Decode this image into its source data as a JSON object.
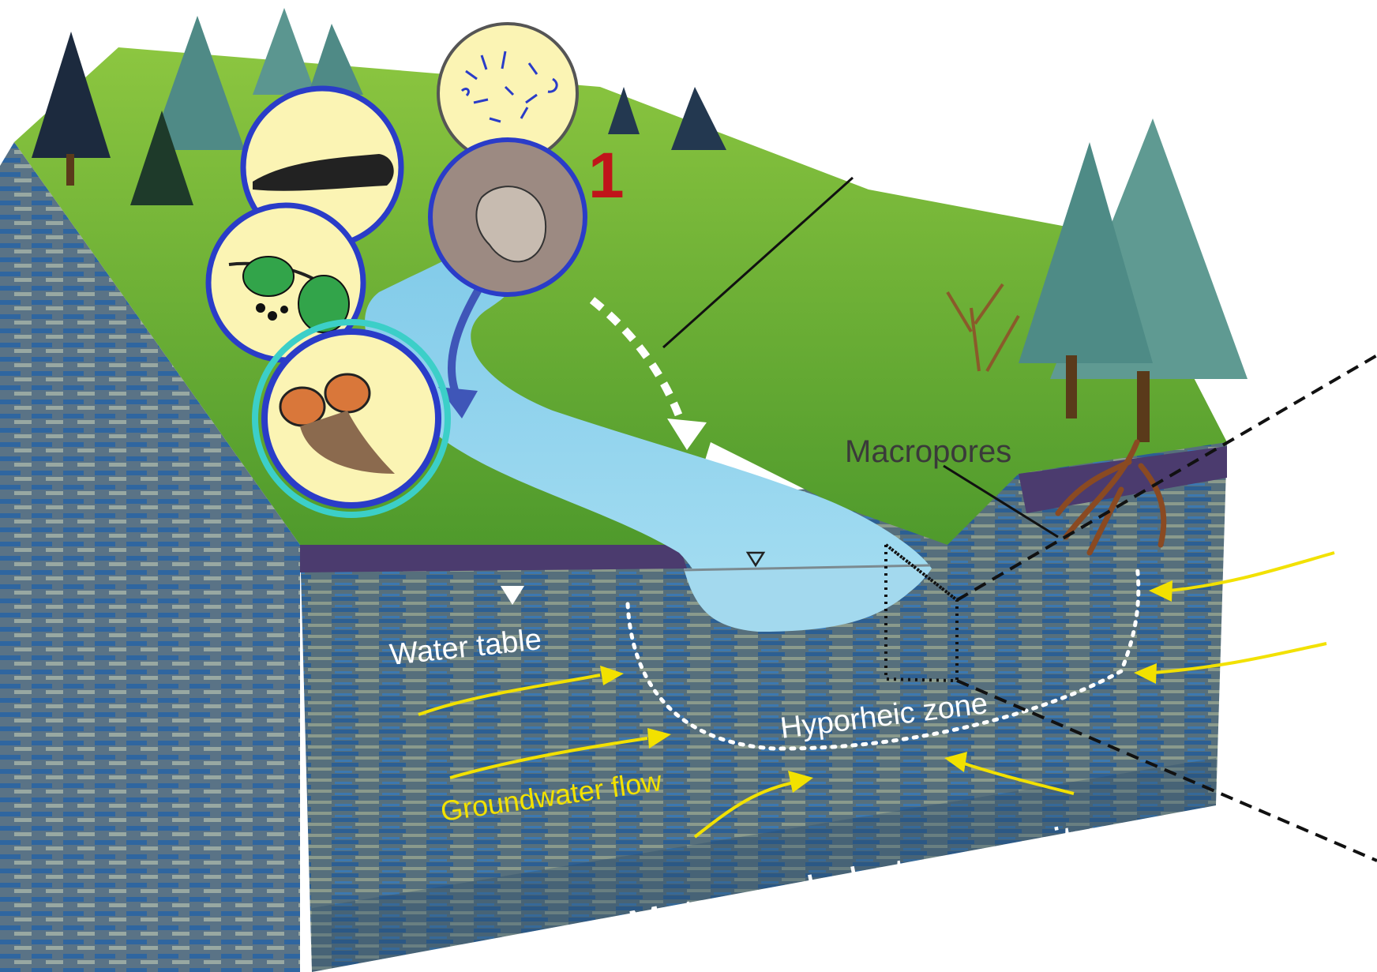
{
  "labels": {
    "number_marker": "1",
    "macropores": "Macropores",
    "water_table": "Water table",
    "hyporheic_zone": "Hyporheic zone",
    "groundwater_flow": "Groundwater flow",
    "meter_scale": "Meter-scale heterogeneity"
  },
  "colors": {
    "grass": "#6aa82f",
    "grass_light": "#9ccc45",
    "stream": "#8fd3ef",
    "soil": "#4a3a6a",
    "aquifer_blue": "#2a5d8e",
    "aquifer_gray": "#6f7d78",
    "arrow_yellow": "#f2e100",
    "marker_red": "#c0141a",
    "inset_fill": "#fbf4b4",
    "inset_ring": "#2a3cc8"
  },
  "icons": {
    "inset_1": "aquatic-larva-icon",
    "inset_2": "alder-leaves-icon",
    "inset_3": "sewage-pipes-icon",
    "inset_4": "bacteria-icon",
    "inset_5": "protozoa-icon"
  }
}
